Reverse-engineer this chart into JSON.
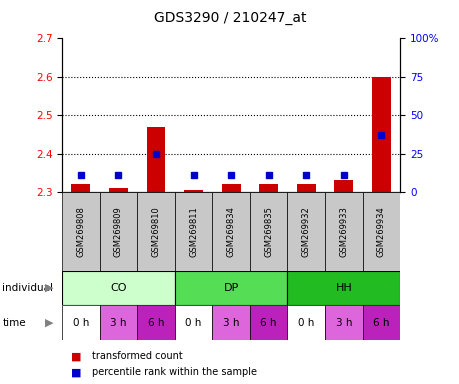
{
  "title": "GDS3290 / 210247_at",
  "samples": [
    "GSM269808",
    "GSM269809",
    "GSM269810",
    "GSM269811",
    "GSM269834",
    "GSM269835",
    "GSM269932",
    "GSM269933",
    "GSM269934"
  ],
  "red_values": [
    2.32,
    2.31,
    2.47,
    2.305,
    2.32,
    2.32,
    2.32,
    2.33,
    2.6
  ],
  "blue_values": [
    11,
    11,
    25,
    11,
    11,
    11,
    11,
    11,
    37
  ],
  "red_base": 2.3,
  "ylim_left": [
    2.3,
    2.7
  ],
  "ylim_right": [
    0,
    100
  ],
  "yticks_left": [
    2.3,
    2.4,
    2.5,
    2.6,
    2.7
  ],
  "yticks_right": [
    0,
    25,
    50,
    75,
    100
  ],
  "ytick_labels_right": [
    "0",
    "25",
    "50",
    "75",
    "100%"
  ],
  "dotted_lines": [
    2.4,
    2.5,
    2.6
  ],
  "groups": [
    {
      "label": "CO",
      "start": 0,
      "end": 3,
      "color": "#ccffcc"
    },
    {
      "label": "DP",
      "start": 3,
      "end": 6,
      "color": "#55dd55"
    },
    {
      "label": "HH",
      "start": 6,
      "end": 9,
      "color": "#22bb22"
    }
  ],
  "times": [
    "0 h",
    "3 h",
    "6 h",
    "0 h",
    "3 h",
    "6 h",
    "0 h",
    "3 h",
    "6 h"
  ],
  "time_colors": [
    "#ffffff",
    "#dd66dd",
    "#bb22bb",
    "#ffffff",
    "#dd66dd",
    "#bb22bb",
    "#ffffff",
    "#dd66dd",
    "#bb22bb"
  ],
  "sample_row_color": "#c8c8c8",
  "bar_color_red": "#cc0000",
  "bar_color_blue": "#0000cc",
  "label_individual": "individual",
  "label_time": "time",
  "legend_red": "transformed count",
  "legend_blue": "percentile rank within the sample",
  "title_fontsize": 10,
  "tick_fontsize": 7.5,
  "sample_fontsize": 6,
  "row_label_fontsize": 7.5,
  "group_fontsize": 8,
  "time_fontsize": 7.5,
  "legend_fontsize": 7
}
